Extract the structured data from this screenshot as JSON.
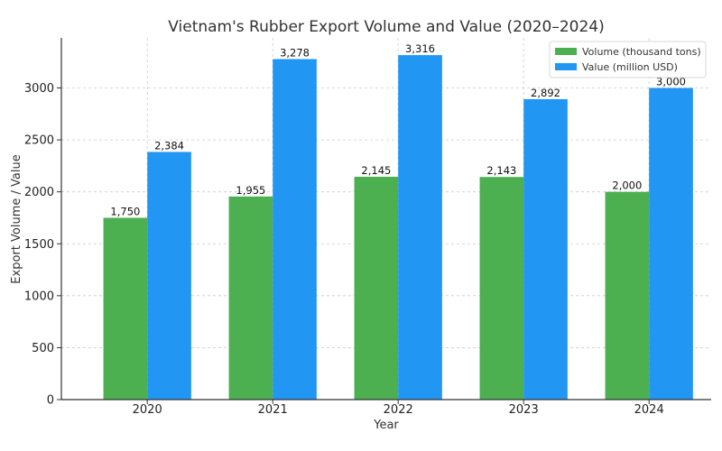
{
  "chart_data": {
    "type": "bar",
    "title": "Vietnam's Rubber Export Volume and Value (2020–2024)",
    "xlabel": "Year",
    "ylabel": "Export Volume / Value",
    "categories": [
      "2020",
      "2021",
      "2022",
      "2023",
      "2024"
    ],
    "series": [
      {
        "name": "Volume (thousand tons)",
        "values": [
          1750,
          1955,
          2145,
          2143,
          2000
        ],
        "labels": [
          "1,750",
          "1,955",
          "2,145",
          "2,143",
          "2,000"
        ],
        "color": "#4caf50"
      },
      {
        "name": "Value (million USD)",
        "values": [
          2384,
          3278,
          3316,
          2892,
          3000
        ],
        "labels": [
          "2,384",
          "3,278",
          "3,316",
          "2,892",
          "3,000"
        ],
        "color": "#2196f3"
      }
    ],
    "ylim": [
      0,
      3482
    ],
    "yticks": [
      0,
      500,
      1000,
      1500,
      2000,
      2500,
      3000
    ],
    "grid": true,
    "legend_position": "top-right"
  }
}
